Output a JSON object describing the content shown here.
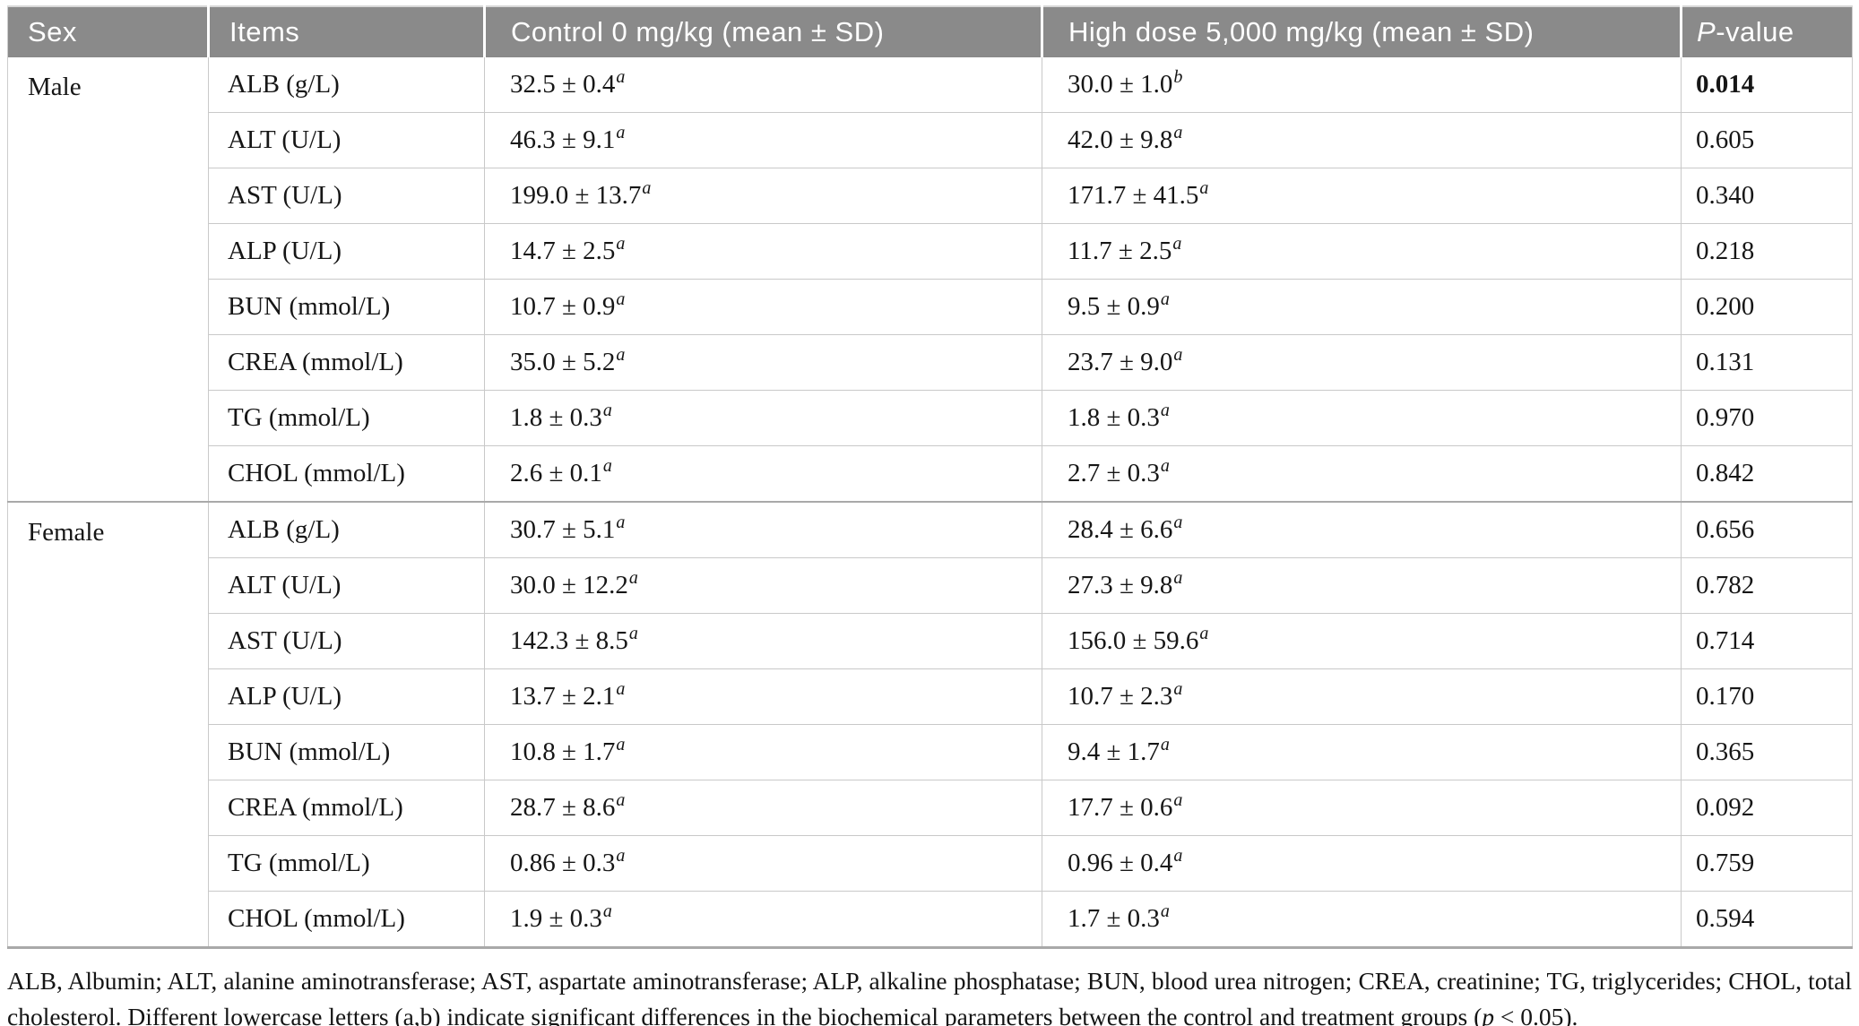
{
  "header": {
    "sex": "Sex",
    "items": "Items",
    "control": "Control 0 mg/kg (mean ± SD)",
    "high_dose": "High dose 5,000 mg/kg (mean ± SD)",
    "p_value": {
      "italic": "P",
      "rest": "-value"
    }
  },
  "sections": [
    {
      "sex": "Male",
      "rows": [
        {
          "item": "ALB (g/L)",
          "control": "32.5 ± 0.4",
          "control_sup": "a",
          "high": "30.0 ± 1.0",
          "high_sup": "b",
          "p": "0.014",
          "p_bold": true
        },
        {
          "item": "ALT (U/L)",
          "control": "46.3 ± 9.1",
          "control_sup": "a",
          "high": "42.0 ± 9.8",
          "high_sup": "a",
          "p": "0.605",
          "p_bold": false
        },
        {
          "item": "AST (U/L)",
          "control": "199.0 ± 13.7",
          "control_sup": "a",
          "high": "171.7 ± 41.5",
          "high_sup": "a",
          "p": "0.340",
          "p_bold": false
        },
        {
          "item": "ALP (U/L)",
          "control": "14.7 ± 2.5",
          "control_sup": "a",
          "high": "11.7 ± 2.5",
          "high_sup": "a",
          "p": "0.218",
          "p_bold": false
        },
        {
          "item": "BUN (mmol/L)",
          "control": "10.7 ± 0.9",
          "control_sup": "a",
          "high": "9.5 ± 0.9",
          "high_sup": "a",
          "p": "0.200",
          "p_bold": false
        },
        {
          "item": "CREA (mmol/L)",
          "control": "35.0 ± 5.2",
          "control_sup": "a",
          "high": "23.7 ± 9.0",
          "high_sup": "a",
          "p": "0.131",
          "p_bold": false
        },
        {
          "item": "TG (mmol/L)",
          "control": "1.8 ± 0.3",
          "control_sup": "a",
          "high": "1.8 ± 0.3",
          "high_sup": "a",
          "p": "0.970",
          "p_bold": false
        },
        {
          "item": "CHOL (mmol/L)",
          "control": "2.6 ± 0.1",
          "control_sup": "a",
          "high": "2.7 ± 0.3",
          "high_sup": "a",
          "p": "0.842",
          "p_bold": false
        }
      ]
    },
    {
      "sex": "Female",
      "rows": [
        {
          "item": "ALB (g/L)",
          "control": "30.7 ± 5.1",
          "control_sup": "a",
          "high": "28.4 ± 6.6",
          "high_sup": "a",
          "p": "0.656",
          "p_bold": false
        },
        {
          "item": "ALT (U/L)",
          "control": "30.0 ± 12.2",
          "control_sup": "a",
          "high": "27.3 ± 9.8",
          "high_sup": "a",
          "p": "0.782",
          "p_bold": false
        },
        {
          "item": "AST (U/L)",
          "control": "142.3 ± 8.5",
          "control_sup": "a",
          "high": "156.0 ± 59.6",
          "high_sup": "a",
          "p": "0.714",
          "p_bold": false
        },
        {
          "item": "ALP (U/L)",
          "control": "13.7 ± 2.1",
          "control_sup": "a",
          "high": "10.7 ± 2.3",
          "high_sup": "a",
          "p": "0.170",
          "p_bold": false
        },
        {
          "item": "BUN (mmol/L)",
          "control": "10.8 ± 1.7",
          "control_sup": "a",
          "high": "9.4 ± 1.7",
          "high_sup": "a",
          "p": "0.365",
          "p_bold": false
        },
        {
          "item": "CREA (mmol/L)",
          "control": "28.7 ± 8.6",
          "control_sup": "a",
          "high": "17.7 ± 0.6",
          "high_sup": "a",
          "p": "0.092",
          "p_bold": false
        },
        {
          "item": "TG (mmol/L)",
          "control": "0.86 ± 0.3",
          "control_sup": "a",
          "high": "0.96 ± 0.4",
          "high_sup": "a",
          "p": "0.759",
          "p_bold": false
        },
        {
          "item": "CHOL (mmol/L)",
          "control": "1.9 ± 0.3",
          "control_sup": "a",
          "high": "1.7 ± 0.3",
          "high_sup": "a",
          "p": "0.594",
          "p_bold": false
        }
      ]
    }
  ],
  "footnote": {
    "text_before_p": "ALB, Albumin; ALT, alanine aminotransferase; AST, aspartate aminotransferase; ALP, alkaline phosphatase; BUN, blood urea nitrogen; CREA, creatinine; TG, triglycerides; CHOL, total cholesterol. Different lowercase letters (a,b) indicate significant differences in the biochemical parameters between the control and treatment groups (",
    "p_italic": "p",
    "text_after_p": " < 0.05)."
  },
  "colors": {
    "header_bg": "#8a8a8a",
    "header_text": "#ffffff",
    "row_border": "#c9c9c9",
    "section_border": "#a9a9a9",
    "body_text": "#161616"
  }
}
